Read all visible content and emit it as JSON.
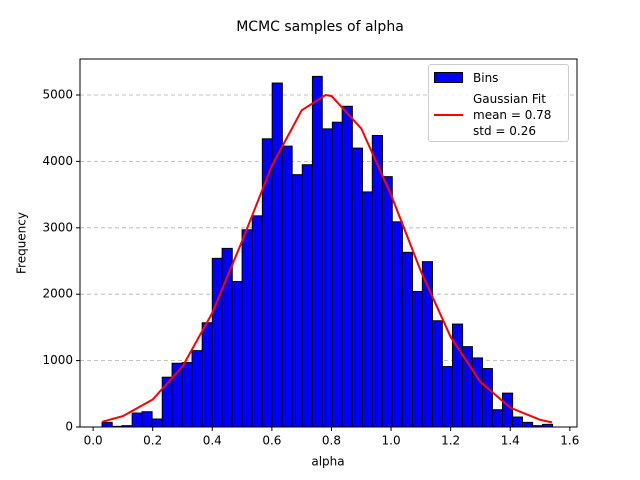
{
  "chart_data": {
    "type": "histogram",
    "title": "MCMC samples of alpha",
    "x_label": "alpha",
    "y_label": "Frequency",
    "bins": [
      0.03,
      0.064,
      0.097,
      0.131,
      0.164,
      0.198,
      0.232,
      0.265,
      0.299,
      0.332,
      0.366,
      0.4,
      0.433,
      0.467,
      0.5,
      0.534,
      0.568,
      0.601,
      0.635,
      0.668,
      0.702,
      0.736,
      0.769,
      0.803,
      0.836,
      0.87,
      0.904,
      0.937,
      0.971,
      1.004,
      1.038,
      1.072,
      1.105,
      1.139,
      1.172,
      1.206,
      1.24,
      1.273,
      1.307,
      1.34,
      1.374,
      1.408,
      1.441,
      1.475,
      1.508,
      1.542
    ],
    "series": [
      {
        "name": "Bins",
        "color": "#0000ff",
        "edgecolor": "#000000",
        "values": [
          70,
          10,
          20,
          210,
          230,
          120,
          750,
          960,
          970,
          1150,
          1570,
          2540,
          2690,
          2190,
          2970,
          3180,
          4340,
          5180,
          4230,
          3800,
          3950,
          5280,
          4490,
          4590,
          4830,
          4200,
          3540,
          4390,
          3770,
          3090,
          2630,
          2040,
          2490,
          1600,
          910,
          1550,
          1210,
          1040,
          880,
          260,
          510,
          150,
          70,
          20,
          40
        ]
      },
      {
        "name": "Gaussian Fit\nmean = 0.78\nstd = 0.26",
        "type": "line",
        "color": "#ff0000",
        "x": [
          0.03,
          0.1,
          0.2,
          0.3,
          0.4,
          0.5,
          0.6,
          0.7,
          0.78,
          0.8,
          0.9,
          1.0,
          1.1,
          1.2,
          1.3,
          1.4,
          1.5,
          1.54
        ],
        "values": [
          78,
          164,
          415,
          910,
          1718,
          2800,
          3935,
          4769,
          5000,
          4985,
          4495,
          3495,
          2345,
          1356,
          677,
          291,
          108,
          70
        ]
      }
    ],
    "xlim": [
      -0.044,
      1.624
    ],
    "ylim": [
      0,
      5542
    ],
    "xticks": [
      {
        "value": 0,
        "label": "0.0"
      },
      0.2,
      0.4,
      0.6,
      0.8,
      {
        "value": 1,
        "label": "1.0"
      },
      1.2,
      1.4,
      1.6
    ],
    "yticks": [
      0,
      1000,
      2000,
      3000,
      4000,
      5000
    ],
    "grid": "y",
    "legend": "upper right"
  }
}
